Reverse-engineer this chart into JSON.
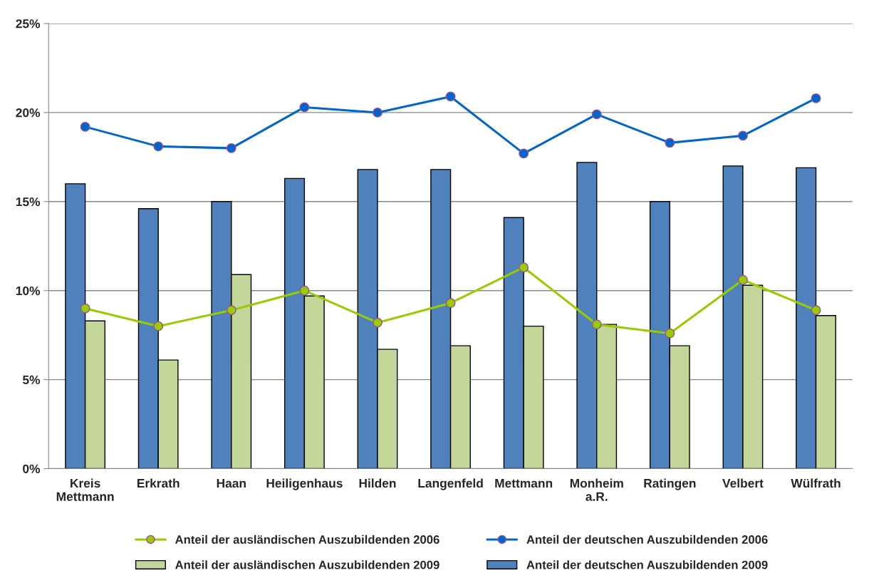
{
  "chart_data": {
    "type": "bar",
    "categories": [
      "Kreis\nMettmann",
      "Erkrath",
      "Haan",
      "Heiligenhaus",
      "Hilden",
      "Langenfeld",
      "Mettmann",
      "Monheim\na.R.",
      "Ratingen",
      "Velbert",
      "Wülfrath"
    ],
    "series": [
      {
        "name": "Anteil der deutschen Auszubildenden 2009",
        "color": "#4f81bd",
        "values": [
          16.0,
          14.6,
          15.0,
          16.3,
          16.8,
          16.8,
          14.1,
          17.2,
          15.0,
          17.0,
          16.9
        ]
      },
      {
        "name": "Anteil der ausländischen Auszubildenden 2009",
        "color": "#c4d79b",
        "values": [
          8.3,
          6.1,
          10.9,
          9.7,
          6.7,
          6.9,
          8.0,
          8.1,
          6.9,
          10.3,
          8.6
        ]
      },
      {
        "name": "Anteil der ausländischen Auszubildenden 2006",
        "type": "line",
        "color": "#99cc00",
        "marker": "circle",
        "values": [
          9.0,
          8.0,
          8.9,
          10.0,
          8.2,
          9.3,
          11.3,
          8.1,
          7.6,
          10.6,
          8.9
        ]
      },
      {
        "name": "Anteil der deutschen Auszubildenden 2006",
        "type": "line",
        "color": "#0066cc",
        "marker": "circle",
        "values": [
          19.2,
          18.1,
          18.0,
          20.3,
          20.0,
          20.9,
          17.7,
          19.9,
          18.3,
          18.7,
          20.8
        ]
      }
    ],
    "ylim": [
      0,
      25
    ],
    "yticks": [
      {
        "value": 0,
        "label": "0%"
      },
      {
        "value": 5,
        "label": "5%"
      },
      {
        "value": 10,
        "label": "10%"
      },
      {
        "value": 15,
        "label": "15%"
      },
      {
        "value": 20,
        "label": "20%"
      },
      {
        "value": 25,
        "label": "25%"
      }
    ],
    "grid": "y",
    "legend": "bottom"
  }
}
